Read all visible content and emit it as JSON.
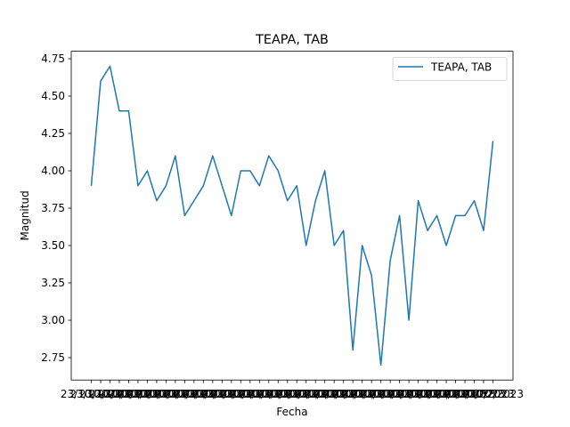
{
  "chart_data": {
    "type": "line",
    "title": "TEAPA, TAB",
    "xlabel": "Fecha",
    "ylabel": "Magnitud",
    "ylim": [
      2.6,
      4.8
    ],
    "yticks": [
      "2.75",
      "3.00",
      "3.25",
      "3.50",
      "3.75",
      "4.00",
      "4.25",
      "4.50",
      "4.75"
    ],
    "ytick_values": [
      2.75,
      3.0,
      3.25,
      3.5,
      3.75,
      4.0,
      4.25,
      4.5,
      4.75
    ],
    "xtick_label_first": "23/10/2023",
    "xtick_label_last": "23/02/2023",
    "legend": {
      "position": "top-right",
      "entries": [
        "TEAPA, TAB"
      ]
    },
    "series_color": "#1f77b4",
    "grid": false,
    "series": [
      {
        "name": "TEAPA, TAB",
        "values": [
          3.9,
          4.6,
          4.7,
          4.4,
          4.4,
          3.9,
          4.0,
          3.8,
          3.9,
          4.1,
          3.7,
          3.8,
          3.9,
          4.1,
          3.9,
          3.7,
          4.0,
          4.0,
          3.9,
          4.1,
          4.0,
          3.8,
          3.9,
          3.5,
          3.8,
          4.0,
          3.5,
          3.6,
          2.8,
          3.5,
          3.3,
          2.7,
          3.4,
          3.7,
          3.0,
          3.8,
          3.6,
          3.7,
          3.5,
          3.7,
          3.7,
          3.8,
          3.6,
          4.2
        ]
      }
    ]
  }
}
